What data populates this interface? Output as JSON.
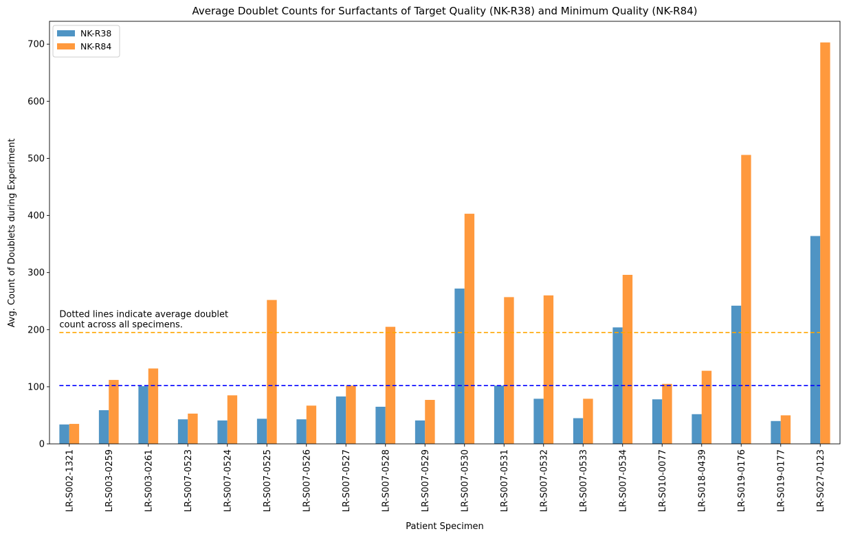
{
  "chart_data": {
    "type": "bar",
    "title": "Average Doublet Counts for Surfactants of Target Quality (NK-R38) and Minimum Quality (NK-R84)",
    "xlabel": "Patient Specimen",
    "ylabel": "Avg. Count of Doublets during Experiment",
    "ylim": [
      0,
      740
    ],
    "yticks": [
      0,
      100,
      200,
      300,
      400,
      500,
      600,
      700
    ],
    "categories": [
      "LR-S002-1321",
      "LR-S003-0259",
      "LR-S003-0261",
      "LR-S007-0523",
      "LR-S007-0524",
      "LR-S007-0525",
      "LR-S007-0526",
      "LR-S007-0527",
      "LR-S007-0528",
      "LR-S007-0529",
      "LR-S007-0530",
      "LR-S007-0531",
      "LR-S007-0532",
      "LR-S007-0533",
      "LR-S007-0534",
      "LR-S010-0077",
      "LR-S018-0439",
      "LR-S019-0176",
      "LR-S019-0177",
      "LR-S027-0123"
    ],
    "series": [
      {
        "name": "NK-R38",
        "color": "#4f94c4",
        "values": [
          34,
          59,
          101,
          43,
          41,
          44,
          43,
          83,
          65,
          41,
          272,
          102,
          79,
          45,
          204,
          78,
          52,
          242,
          40,
          364
        ]
      },
      {
        "name": "NK-R84",
        "color": "#ff993d",
        "values": [
          35,
          112,
          132,
          53,
          85,
          252,
          67,
          102,
          205,
          77,
          403,
          257,
          260,
          79,
          296,
          105,
          128,
          506,
          50,
          703
        ]
      }
    ],
    "reference_lines": [
      {
        "series": "NK-R38",
        "value": 102,
        "color": "#0000ff",
        "style": "dashed"
      },
      {
        "series": "NK-R84",
        "value": 195,
        "color": "#ffa500",
        "style": "dashed"
      }
    ],
    "annotation": {
      "lines": [
        "Dotted lines indicate average doublet",
        "count across all specimens."
      ],
      "anchor_x_index": 0,
      "anchor_y_value": 204
    },
    "legend": {
      "position": "top-left"
    },
    "grid": false
  }
}
